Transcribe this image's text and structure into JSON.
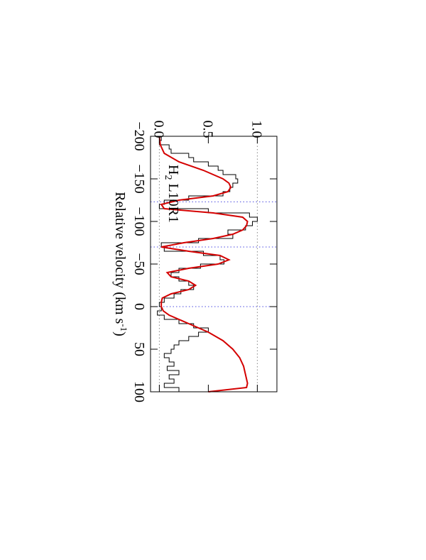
{
  "chart_data": {
    "type": "line",
    "xlabel": {
      "main": "Relative velocity (km s",
      "sup": "-1",
      "end": ")"
    },
    "annotation": {
      "main": "H",
      "sub": "2",
      "rest": "L10R1"
    },
    "xlim": [
      -200,
      100
    ],
    "xticks": [
      {
        "value": -200,
        "label": "−200"
      },
      {
        "value": -150,
        "label": "−150"
      },
      {
        "value": -100,
        "label": "−100"
      },
      {
        "value": -50,
        "label": "−50"
      },
      0,
      50,
      100
    ],
    "ylim": [
      -0.09,
      1.2
    ],
    "yticks": [
      {
        "value": 0,
        "label": "0.0"
      },
      {
        "value": 0.5,
        "label": "0.5"
      },
      {
        "value": 1,
        "label": "1.0"
      }
    ],
    "hlines": {
      "color": "#888888",
      "values": [
        0,
        1
      ]
    },
    "vlines": {
      "color": "#4a4ae0",
      "values": [
        -123,
        -70,
        0
      ]
    },
    "series": [
      {
        "color": "#000000",
        "step": true,
        "x": [
          -197.5,
          -192.5,
          -187.5,
          -182.5,
          -177.5,
          -172.5,
          -167.5,
          -162.5,
          -157.5,
          -152.5,
          -147.5,
          -142.5,
          -137.5,
          -132.5,
          -127.5,
          -122.5,
          -117.5,
          -112.5,
          -107.5,
          -102.5,
          -97.5,
          -92.5,
          -87.5,
          -82.5,
          -77.5,
          -72.5,
          -67.5,
          -62.5,
          -57.5,
          -52.5,
          -47.5,
          -42.5,
          -37.5,
          -32.5,
          -27.5,
          -22.5,
          -17.5,
          -12.5,
          -7.5,
          -2.5,
          2.5,
          7.5,
          12.5,
          17.5,
          22.5,
          27.5,
          32.5,
          37.5,
          42.5,
          47.5,
          52.5,
          57.5,
          62.5,
          67.5,
          72.5,
          77.5,
          82.5,
          87.5,
          92.5,
          97.5
        ],
        "values": [
          0.02,
          0.0,
          0.1,
          0.12,
          0.3,
          0.35,
          0.5,
          0.6,
          0.65,
          0.78,
          0.8,
          0.75,
          0.72,
          0.65,
          0.3,
          0.05,
          0.0,
          0.5,
          0.92,
          1.0,
          0.95,
          0.88,
          0.7,
          0.75,
          0.4,
          0.02,
          0.05,
          0.45,
          0.62,
          0.66,
          0.42,
          0.2,
          0.12,
          0.2,
          0.3,
          0.35,
          0.22,
          0.15,
          0.05,
          0.0,
          0.02,
          -0.02,
          0.05,
          0.2,
          0.35,
          0.5,
          0.4,
          0.3,
          0.2,
          0.15,
          0.12,
          0.05,
          0.1,
          0.15,
          0.08,
          0.2,
          0.1,
          0.15,
          0.05,
          0.2
        ]
      },
      {
        "color": "#d40000",
        "step": false,
        "x": [
          -200,
          -190,
          -180,
          -170,
          -160,
          -150,
          -145,
          -140,
          -135,
          -130,
          -125,
          -120,
          -115,
          -110,
          -105,
          -100,
          -95,
          -90,
          -85,
          -80,
          -75,
          -70,
          -65,
          -60,
          -55,
          -50,
          -45,
          -40,
          -35,
          -30,
          -25,
          -20,
          -15,
          -10,
          -5,
          0,
          5,
          10,
          20,
          30,
          40,
          50,
          60,
          70,
          80,
          90,
          95,
          100
        ],
        "values": [
          0,
          0.01,
          0.05,
          0.2,
          0.45,
          0.65,
          0.71,
          0.73,
          0.7,
          0.55,
          0.2,
          0.02,
          0.05,
          0.55,
          0.85,
          0.9,
          0.89,
          0.85,
          0.75,
          0.55,
          0.25,
          0.02,
          0.3,
          0.62,
          0.71,
          0.6,
          0.3,
          0.08,
          0.12,
          0.3,
          0.37,
          0.3,
          0.12,
          0.03,
          0.02,
          0.02,
          0.04,
          0.1,
          0.3,
          0.5,
          0.65,
          0.75,
          0.82,
          0.86,
          0.88,
          0.9,
          0.89,
          0.5
        ]
      }
    ]
  }
}
